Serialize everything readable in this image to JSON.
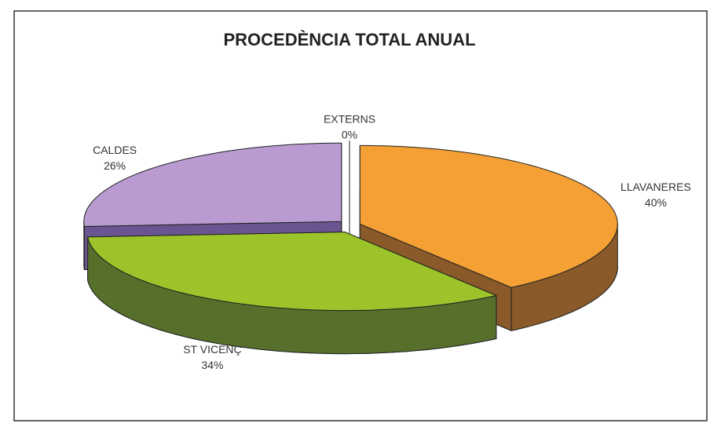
{
  "chart_data": {
    "type": "pie3d",
    "title": "PROCEDÈNCIA TOTAL ANUAL",
    "categories": [
      "LLAVANERES",
      "ST VICENÇ",
      "CALDES",
      "EXTERNS"
    ],
    "values": [
      40,
      34,
      26,
      0
    ],
    "value_labels": [
      "40%",
      "34%",
      "26%",
      "0%"
    ],
    "colors": [
      "#f4a034",
      "#9cc42a",
      "#b99bd1",
      "#ffffff"
    ],
    "side_colors": [
      "#8a5a2a",
      "#56702c",
      "#6a5590",
      "#ffffff"
    ]
  }
}
